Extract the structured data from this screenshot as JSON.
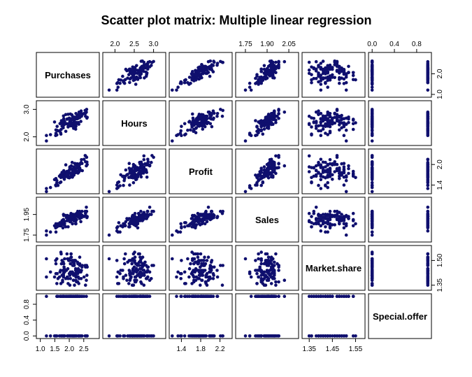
{
  "chart_data": {
    "type": "scatter",
    "title": "Scatter plot matrix: Multiple linear regression",
    "color": "#0f0f6e",
    "variables": [
      {
        "name": "Purchases",
        "lim": [
          0.95,
          2.95
        ],
        "ticks": [
          {
            "v": 1.0,
            "label": "1.0"
          },
          {
            "v": 1.5,
            "label": "1.5"
          },
          {
            "v": 2.0,
            "label": "2.0"
          },
          {
            "v": 2.5,
            "label": "2.5"
          }
        ],
        "axis": "bottom"
      },
      {
        "name": "Hours",
        "lim": [
          1.75,
          3.25
        ],
        "ticks": [
          {
            "v": 2.0,
            "label": "2.0"
          },
          {
            "v": 2.5,
            "label": "2.5"
          },
          {
            "v": 3.0,
            "label": "3.0"
          }
        ],
        "axis": "top"
      },
      {
        "name": "Profit",
        "lim": [
          1.2,
          2.4
        ],
        "ticks": [
          {
            "v": 1.4,
            "label": "1.4"
          },
          {
            "v": 1.8,
            "label": "1.8"
          },
          {
            "v": 2.2,
            "label": "2.2"
          }
        ],
        "axis": "bottom"
      },
      {
        "name": "Sales",
        "lim": [
          1.7,
          2.1
        ],
        "ticks": [
          {
            "v": 1.75,
            "label": "1.75"
          },
          {
            "v": 1.9,
            "label": "1.90"
          },
          {
            "v": 2.05,
            "label": "2.05"
          }
        ],
        "axis": "top"
      },
      {
        "name": "Market.share",
        "lim": [
          1.33,
          1.58
        ],
        "ticks": [
          {
            "v": 1.35,
            "label": "1.35"
          },
          {
            "v": 1.45,
            "label": "1.45"
          },
          {
            "v": 1.55,
            "label": "1.55"
          }
        ],
        "axis": "bottom"
      },
      {
        "name": "Special.offer",
        "lim": [
          -0.02,
          1.02
        ],
        "ticks": [
          {
            "v": 0.0,
            "label": "0.0"
          },
          {
            "v": 0.4,
            "label": "0.4"
          },
          {
            "v": 0.8,
            "label": "0.8"
          }
        ],
        "axis": "top"
      }
    ],
    "side_ticks": [
      {
        "row": 0,
        "side": "right",
        "ticks": [
          {
            "v": 1.0,
            "label": "1.0"
          },
          {
            "v": 2.0,
            "label": "2.0"
          }
        ]
      },
      {
        "row": 1,
        "side": "left",
        "ticks": [
          {
            "v": 2.0,
            "label": "2.0"
          },
          {
            "v": 3.0,
            "label": "3.0"
          }
        ]
      },
      {
        "row": 2,
        "side": "right",
        "ticks": [
          {
            "v": 1.4,
            "label": "1.4"
          },
          {
            "v": 2.0,
            "label": "2.0"
          }
        ]
      },
      {
        "row": 3,
        "side": "left",
        "ticks": [
          {
            "v": 1.75,
            "label": "1.75"
          },
          {
            "v": 1.95,
            "label": "1.95"
          }
        ]
      },
      {
        "row": 4,
        "side": "right",
        "ticks": [
          {
            "v": 1.35,
            "label": "1.35"
          },
          {
            "v": 1.5,
            "label": "1.50"
          }
        ]
      },
      {
        "row": 5,
        "side": "left",
        "ticks": [
          {
            "v": 0.0,
            "label": "0.0"
          },
          {
            "v": 0.4,
            "label": "0.4"
          },
          {
            "v": 0.8,
            "label": "0.8"
          }
        ]
      }
    ],
    "observations": [
      [
        2.28,
        2.66,
        1.91,
        1.93,
        1.4,
        1
      ],
      [
        1.71,
        2.51,
        1.62,
        1.86,
        1.55,
        0
      ],
      [
        1.9,
        2.48,
        1.75,
        1.92,
        1.44,
        1
      ],
      [
        2.56,
        2.75,
        2.25,
        1.96,
        1.35,
        0
      ],
      [
        1.73,
        2.59,
        1.66,
        1.86,
        1.48,
        0
      ],
      [
        2.23,
        2.39,
        1.83,
        1.86,
        1.38,
        0
      ],
      [
        2.07,
        2.52,
        1.96,
        1.91,
        1.52,
        1
      ],
      [
        1.92,
        2.64,
        1.8,
        1.89,
        1.54,
        1
      ],
      [
        1.82,
        2.53,
        1.71,
        1.85,
        1.44,
        0
      ],
      [
        2.22,
        2.37,
        1.89,
        1.86,
        1.44,
        1
      ],
      [
        1.78,
        2.59,
        1.69,
        1.82,
        1.44,
        1
      ],
      [
        1.82,
        2.5,
        1.79,
        1.85,
        1.46,
        0
      ],
      [
        2.23,
        2.85,
        1.99,
        1.94,
        1.4,
        1
      ],
      [
        2.42,
        2.75,
        2.14,
        1.92,
        1.44,
        1
      ],
      [
        1.57,
        2.24,
        1.53,
        1.84,
        1.51,
        1
      ],
      [
        2.34,
        2.75,
        1.85,
        1.95,
        1.44,
        0
      ],
      [
        2.09,
        2.43,
        1.87,
        1.91,
        1.5,
        0
      ],
      [
        2.18,
        2.45,
        1.79,
        1.89,
        1.35,
        0
      ],
      [
        2.44,
        2.84,
        2.03,
        1.98,
        1.46,
        0
      ],
      [
        2.59,
        2.9,
        1.96,
        2.02,
        1.38,
        1
      ],
      [
        1.8,
        2.42,
        1.62,
        1.87,
        1.42,
        1
      ],
      [
        2.19,
        2.37,
        2.03,
        1.91,
        1.5,
        0
      ],
      [
        2.36,
        2.75,
        1.9,
        1.97,
        1.48,
        0
      ],
      [
        2.16,
        2.66,
        1.93,
        1.91,
        1.5,
        1
      ],
      [
        2.28,
        2.78,
        2.02,
        1.95,
        1.49,
        1
      ],
      [
        2.29,
        2.67,
        1.91,
        1.98,
        1.37,
        1
      ],
      [
        2.04,
        2.44,
        1.74,
        1.88,
        1.48,
        1
      ],
      [
        2.06,
        2.65,
        1.74,
        1.91,
        1.52,
        1
      ],
      [
        2.06,
        2.48,
        1.7,
        1.9,
        1.54,
        1
      ],
      [
        1.61,
        2.22,
        1.39,
        1.86,
        1.39,
        1
      ],
      [
        1.81,
        2.54,
        1.82,
        1.89,
        1.48,
        1
      ],
      [
        2.41,
        2.94,
        2.06,
        1.95,
        1.39,
        0
      ],
      [
        1.95,
        2.47,
        1.7,
        1.93,
        1.45,
        1
      ],
      [
        2.25,
        2.48,
        2.0,
        1.9,
        1.43,
        0
      ],
      [
        2.51,
        2.85,
        2.15,
        1.93,
        1.4,
        1
      ],
      [
        1.66,
        2.22,
        1.66,
        1.84,
        1.4,
        0
      ],
      [
        2.02,
        2.58,
        1.91,
        1.92,
        1.41,
        0
      ],
      [
        2.09,
        2.8,
        1.85,
        1.91,
        1.43,
        1
      ],
      [
        2.6,
        3.0,
        2.21,
        1.98,
        1.47,
        0
      ],
      [
        2.04,
        2.4,
        1.75,
        1.88,
        1.39,
        0
      ],
      [
        1.54,
        2.13,
        1.38,
        1.78,
        1.42,
        0
      ],
      [
        1.96,
        2.82,
        1.77,
        1.91,
        1.39,
        0
      ],
      [
        1.88,
        2.2,
        1.65,
        1.83,
        1.44,
        1
      ],
      [
        2.25,
        2.73,
        1.81,
        1.9,
        1.44,
        1
      ],
      [
        2.16,
        2.51,
        1.69,
        1.89,
        1.49,
        0
      ],
      [
        2.62,
        2.71,
        2.0,
        1.93,
        1.46,
        0
      ],
      [
        2.36,
        2.85,
        2.02,
        1.98,
        1.44,
        1
      ],
      [
        2.14,
        2.51,
        1.82,
        1.9,
        1.38,
        1
      ],
      [
        2.01,
        2.51,
        1.85,
        1.9,
        1.5,
        1
      ],
      [
        2.25,
        2.52,
        1.9,
        1.96,
        1.37,
        1
      ],
      [
        2.31,
        2.68,
        1.99,
        1.94,
        1.45,
        0
      ],
      [
        2.56,
        2.86,
        2.08,
        1.94,
        1.46,
        0
      ],
      [
        1.77,
        2.54,
        1.66,
        1.86,
        1.37,
        1
      ],
      [
        1.54,
        2.25,
        1.59,
        1.86,
        1.48,
        0
      ],
      [
        1.81,
        2.66,
        1.81,
        1.94,
        1.43,
        1
      ],
      [
        2.13,
        2.67,
        1.72,
        1.91,
        1.49,
        0
      ],
      [
        2.61,
        2.68,
        2.07,
        1.92,
        1.41,
        0
      ],
      [
        2.17,
        2.72,
        1.86,
        1.91,
        1.48,
        1
      ],
      [
        2.22,
        2.65,
        2.02,
        1.94,
        1.45,
        1
      ],
      [
        2.2,
        2.71,
        1.79,
        1.95,
        1.42,
        1
      ],
      [
        2.0,
        2.47,
        1.61,
        1.91,
        1.42,
        0
      ],
      [
        2.34,
        2.83,
        2.0,
        1.95,
        1.39,
        0
      ],
      [
        2.12,
        2.74,
        1.86,
        1.95,
        1.47,
        1
      ],
      [
        2.33,
        2.69,
        1.91,
        1.93,
        1.36,
        0
      ],
      [
        1.79,
        2.33,
        1.71,
        1.9,
        1.49,
        0
      ],
      [
        1.84,
        2.46,
        1.63,
        1.86,
        1.51,
        0
      ],
      [
        1.94,
        2.46,
        1.67,
        1.94,
        1.51,
        0
      ],
      [
        2.36,
        2.7,
        2.0,
        1.91,
        1.47,
        1
      ],
      [
        1.84,
        2.56,
        1.68,
        1.88,
        1.43,
        0
      ],
      [
        2.06,
        2.61,
        1.74,
        1.96,
        1.54,
        0
      ],
      [
        1.8,
        2.42,
        1.66,
        1.9,
        1.4,
        1
      ],
      [
        2.29,
        2.75,
        1.93,
        1.95,
        1.42,
        1
      ],
      [
        2.02,
        2.48,
        1.93,
        1.88,
        1.35,
        1
      ],
      [
        2.11,
        2.4,
        1.63,
        1.86,
        1.5,
        0
      ],
      [
        1.93,
        2.65,
        1.71,
        1.89,
        1.4,
        0
      ],
      [
        2.12,
        2.63,
        1.76,
        1.92,
        1.49,
        0
      ],
      [
        1.75,
        2.39,
        1.77,
        1.86,
        1.41,
        0
      ],
      [
        1.49,
        2.54,
        1.56,
        1.84,
        1.4,
        0
      ],
      [
        2.3,
        2.74,
        1.75,
        1.93,
        1.48,
        1
      ],
      [
        1.83,
        2.56,
        1.57,
        1.85,
        1.45,
        1
      ],
      [
        2.04,
        2.83,
        1.63,
        1.94,
        1.43,
        1
      ],
      [
        2.55,
        2.96,
        2.26,
        1.98,
        1.47,
        0
      ],
      [
        1.72,
        2.27,
        1.66,
        1.84,
        1.54,
        1
      ],
      [
        1.8,
        2.76,
        1.79,
        1.95,
        1.41,
        0
      ],
      [
        1.58,
        2.38,
        1.4,
        1.83,
        1.42,
        1
      ],
      [
        1.71,
        2.1,
        1.49,
        1.87,
        1.36,
        1
      ],
      [
        1.75,
        2.5,
        1.76,
        1.89,
        1.5,
        0
      ],
      [
        1.68,
        2.48,
        1.47,
        1.87,
        1.43,
        1
      ],
      [
        2.33,
        2.46,
        1.78,
        1.94,
        1.44,
        0
      ],
      [
        1.88,
        2.81,
        1.99,
        1.94,
        1.39,
        1
      ],
      [
        1.35,
        2.08,
        1.33,
        1.78,
        1.43,
        0
      ],
      [
        1.53,
        2.05,
        1.4,
        1.82,
        1.5,
        0
      ],
      [
        1.21,
        2.05,
        1.3,
        1.79,
        1.4,
        1
      ],
      [
        2.15,
        2.31,
        1.7,
        1.91,
        1.38,
        1
      ],
      [
        1.7,
        2.15,
        1.7,
        1.84,
        1.44,
        1
      ],
      [
        2.22,
        2.28,
        1.84,
        1.88,
        1.41,
        1
      ],
      [
        2.17,
        2.58,
        1.88,
        1.9,
        1.47,
        0
      ],
      [
        2.4,
        2.56,
        1.83,
        1.88,
        1.43,
        0
      ],
      [
        2.36,
        2.72,
        1.88,
        1.93,
        1.52,
        1
      ],
      [
        1.77,
        2.56,
        1.66,
        1.87,
        1.38,
        1
      ],
      [
        2.21,
        2.45,
        1.76,
        1.93,
        1.5,
        0
      ],
      [
        2.31,
        2.52,
        1.95,
        1.93,
        1.4,
        1
      ],
      [
        2.0,
        2.68,
        1.64,
        1.93,
        1.51,
        1
      ],
      [
        2.1,
        2.64,
        2.06,
        1.93,
        1.42,
        1
      ],
      [
        2.45,
        2.81,
        1.82,
        1.94,
        1.47,
        1
      ],
      [
        2.15,
        2.63,
        1.86,
        1.94,
        1.47,
        0
      ],
      [
        2.14,
        2.63,
        1.82,
        1.95,
        1.42,
        0
      ],
      [
        2.11,
        2.39,
        1.77,
        1.86,
        1.43,
        0
      ],
      [
        1.21,
        1.85,
        1.21,
        1.75,
        1.51,
        0
      ],
      [
        1.78,
        2.59,
        1.64,
        1.88,
        1.41,
        0
      ],
      [
        2.15,
        2.71,
        1.8,
        1.89,
        1.41,
        0
      ],
      [
        2.34,
        2.9,
        1.98,
        1.95,
        1.43,
        0
      ],
      [
        1.98,
        2.45,
        1.81,
        1.9,
        1.5,
        1
      ],
      [
        1.57,
        2.07,
        1.47,
        1.83,
        1.36,
        0
      ],
      [
        1.96,
        2.36,
        1.62,
        1.83,
        1.36,
        1
      ]
    ]
  }
}
